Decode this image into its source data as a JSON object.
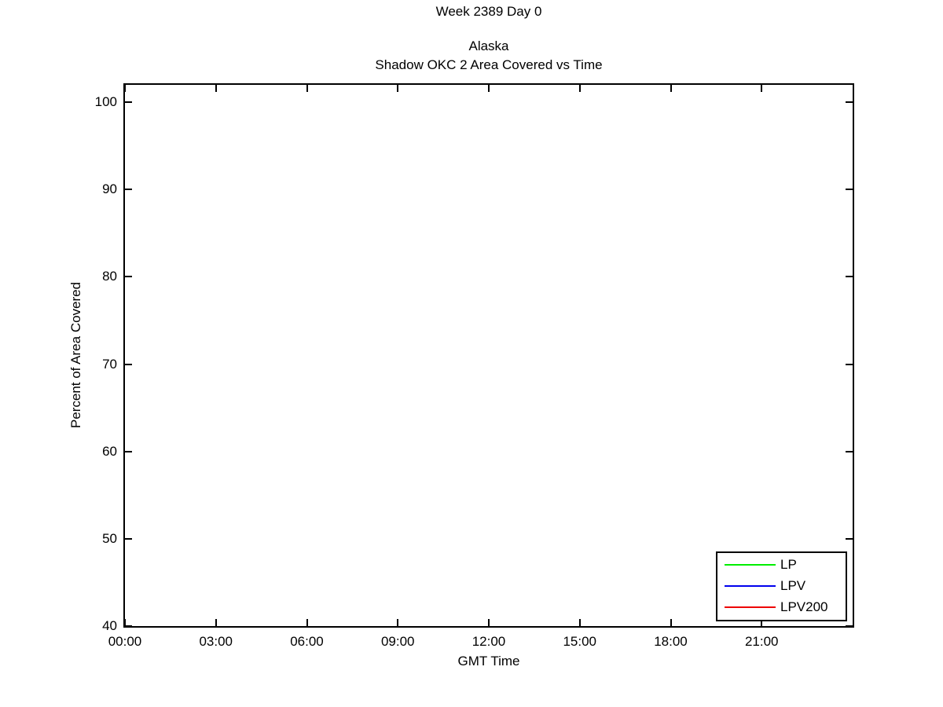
{
  "figure": {
    "background": "#ffffff",
    "text_color": "#000000"
  },
  "chart_data": {
    "type": "line",
    "suptitle": "Week 2389 Day 0",
    "title_lines": [
      "Alaska",
      "Shadow OKC 2 Area Covered vs Time"
    ],
    "xlabel": "GMT Time",
    "ylabel": "Percent of Area Covered",
    "x_ticks": [
      {
        "hour": 0,
        "label": "00:00"
      },
      {
        "hour": 3,
        "label": "03:00"
      },
      {
        "hour": 6,
        "label": "06:00"
      },
      {
        "hour": 9,
        "label": "09:00"
      },
      {
        "hour": 12,
        "label": "12:00"
      },
      {
        "hour": 15,
        "label": "15:00"
      },
      {
        "hour": 18,
        "label": "18:00"
      },
      {
        "hour": 21,
        "label": "21:00"
      }
    ],
    "xlim_hours": [
      0,
      24
    ],
    "y_ticks": [
      40,
      50,
      60,
      70,
      80,
      90,
      100
    ],
    "ylim": [
      40,
      102
    ],
    "grid": false,
    "legend": {
      "position": "southeast",
      "entries": [
        {
          "label": "LP",
          "color": "#00ee00"
        },
        {
          "label": "LPV",
          "color": "#0000ee"
        },
        {
          "label": "LPV200",
          "color": "#ee0000"
        }
      ]
    },
    "series": [
      {
        "name": "LP",
        "color": "#00ee00",
        "points": []
      },
      {
        "name": "LPV",
        "color": "#0000ee",
        "points": []
      },
      {
        "name": "LPV200",
        "color": "#ee0000",
        "points": []
      }
    ]
  }
}
